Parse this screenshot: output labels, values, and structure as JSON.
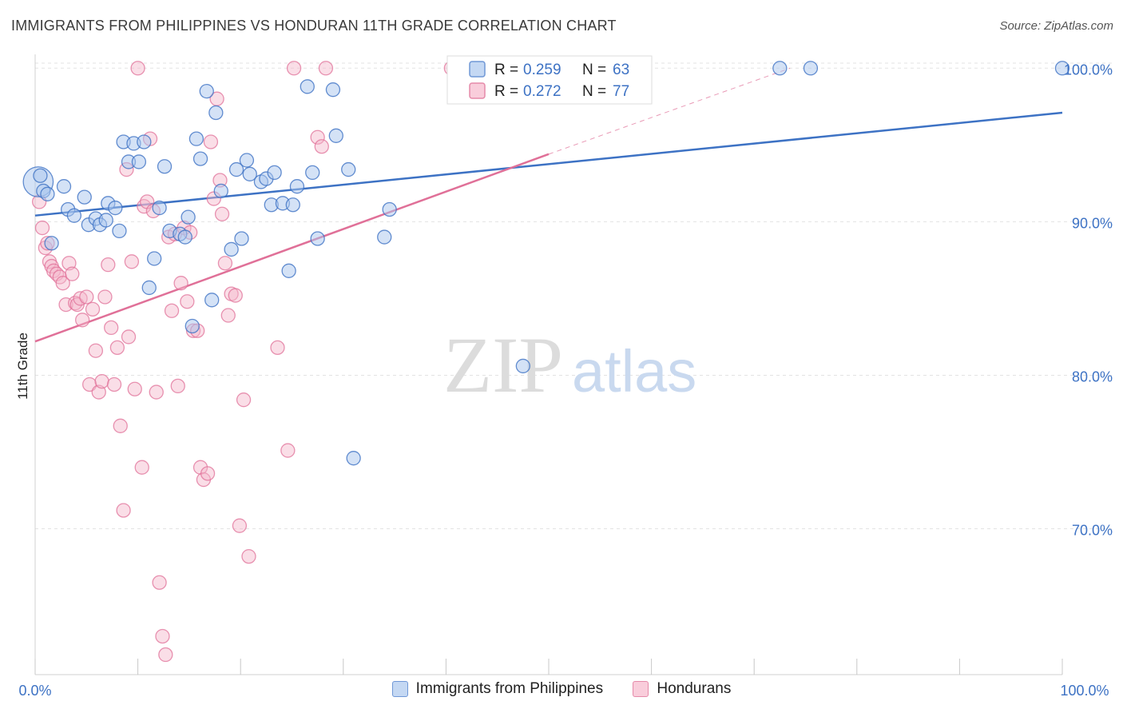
{
  "title": "IMMIGRANTS FROM PHILIPPINES VS HONDURAN 11TH GRADE CORRELATION CHART",
  "source": "Source: ZipAtlas.com",
  "watermark": {
    "zip": "ZIP",
    "atlas": "atlas"
  },
  "colors": {
    "blue": "#3d72c4",
    "blue_fill": "#a9c5ee",
    "pink": "#e07098",
    "pink_fill": "#f5b6ca",
    "axis_text": "#3d72c4"
  },
  "stats_box": [
    {
      "series": "Immigrants from Philippines",
      "r_label": "R =",
      "r_value": "0.259",
      "n_label": "N =",
      "n_value": "63"
    },
    {
      "series": "Hondurans",
      "r_label": "R =",
      "r_value": "0.272",
      "n_label": "N =",
      "n_value": "77"
    }
  ],
  "legend": [
    {
      "label": "Immigrants from Philippines",
      "color": "blue"
    },
    {
      "label": "Hondurans",
      "color": "pink"
    }
  ],
  "chart_data": {
    "type": "scatter",
    "title": "IMMIGRANTS FROM PHILIPPINES VS HONDURAN 11TH GRADE CORRELATION CHART",
    "xlabel": "",
    "ylabel": "11th Grade",
    "xlim": [
      0,
      100
    ],
    "ylim": [
      60.5,
      100.9
    ],
    "x_tick_labels": [
      "0.0%",
      "100.0%"
    ],
    "y_ticks": [
      70,
      80,
      90,
      100
    ],
    "y_tick_labels": [
      "70.0%",
      "80.0%",
      "90.0%",
      "100.0%"
    ],
    "grid": true,
    "legend_position": "bottom",
    "series": [
      {
        "name": "Immigrants from Philippines",
        "color": "blue",
        "trend": {
          "x": [
            0,
            100
          ],
          "y": [
            90.4,
            97.1
          ]
        },
        "points": [
          [
            0.3,
            92.6
          ],
          [
            0.8,
            92.0
          ],
          [
            1.2,
            91.8
          ],
          [
            1.6,
            88.6
          ],
          [
            2.8,
            92.3
          ],
          [
            3.2,
            90.8
          ],
          [
            3.8,
            90.4
          ],
          [
            4.8,
            91.6
          ],
          [
            5.2,
            89.8
          ],
          [
            5.9,
            90.2
          ],
          [
            6.3,
            89.8
          ],
          [
            6.9,
            90.1
          ],
          [
            7.1,
            91.2
          ],
          [
            7.8,
            90.9
          ],
          [
            8.2,
            89.4
          ],
          [
            8.6,
            95.2
          ],
          [
            9.1,
            93.9
          ],
          [
            9.6,
            95.1
          ],
          [
            10.1,
            93.9
          ],
          [
            10.6,
            95.2
          ],
          [
            11.1,
            85.7
          ],
          [
            11.6,
            87.6
          ],
          [
            12.1,
            90.9
          ],
          [
            12.6,
            93.6
          ],
          [
            13.1,
            89.4
          ],
          [
            14.1,
            89.2
          ],
          [
            14.6,
            89.0
          ],
          [
            14.9,
            90.3
          ],
          [
            15.3,
            83.2
          ],
          [
            15.7,
            95.4
          ],
          [
            16.1,
            94.1
          ],
          [
            16.7,
            98.5
          ],
          [
            17.2,
            84.9
          ],
          [
            17.6,
            97.1
          ],
          [
            18.1,
            92.0
          ],
          [
            19.1,
            88.2
          ],
          [
            19.6,
            93.4
          ],
          [
            20.1,
            88.9
          ],
          [
            20.6,
            94.0
          ],
          [
            20.9,
            93.1
          ],
          [
            22.0,
            92.6
          ],
          [
            22.5,
            92.8
          ],
          [
            23.0,
            91.1
          ],
          [
            23.3,
            93.2
          ],
          [
            24.1,
            91.2
          ],
          [
            24.7,
            86.8
          ],
          [
            25.1,
            91.1
          ],
          [
            25.5,
            92.3
          ],
          [
            26.5,
            98.8
          ],
          [
            27.0,
            93.2
          ],
          [
            27.5,
            88.9
          ],
          [
            29.0,
            98.6
          ],
          [
            29.3,
            95.6
          ],
          [
            30.5,
            93.4
          ],
          [
            31.0,
            74.6
          ],
          [
            34.0,
            89.0
          ],
          [
            34.5,
            90.8
          ],
          [
            47.5,
            80.6
          ],
          [
            72.5,
            100.0
          ],
          [
            75.5,
            100.0
          ],
          [
            100.0,
            100.0
          ],
          [
            59.0,
            100.0
          ],
          [
            0.5,
            93.0
          ]
        ],
        "sizes": {
          "0": 2.2
        }
      },
      {
        "name": "Hondurans",
        "color": "pink",
        "trend": {
          "x": [
            0,
            50
          ],
          "y": [
            82.2,
            94.4
          ]
        },
        "trend_dashed_to": {
          "x": 73.5,
          "y": 100.0
        },
        "points": [
          [
            0.4,
            91.3
          ],
          [
            0.7,
            89.6
          ],
          [
            1.0,
            88.3
          ],
          [
            1.2,
            88.6
          ],
          [
            1.4,
            87.4
          ],
          [
            1.6,
            87.1
          ],
          [
            1.8,
            86.8
          ],
          [
            2.1,
            86.6
          ],
          [
            2.4,
            86.4
          ],
          [
            2.7,
            86.0
          ],
          [
            3.0,
            84.6
          ],
          [
            3.3,
            87.3
          ],
          [
            3.6,
            86.6
          ],
          [
            3.9,
            84.7
          ],
          [
            4.1,
            84.6
          ],
          [
            4.4,
            85.0
          ],
          [
            4.6,
            83.6
          ],
          [
            5.0,
            85.1
          ],
          [
            5.3,
            79.4
          ],
          [
            5.6,
            84.3
          ],
          [
            5.9,
            81.6
          ],
          [
            6.2,
            78.9
          ],
          [
            6.5,
            79.6
          ],
          [
            6.8,
            85.1
          ],
          [
            7.1,
            87.2
          ],
          [
            7.4,
            83.1
          ],
          [
            7.7,
            79.4
          ],
          [
            8.0,
            81.8
          ],
          [
            8.3,
            76.7
          ],
          [
            8.6,
            71.2
          ],
          [
            8.9,
            93.4
          ],
          [
            9.1,
            82.5
          ],
          [
            9.4,
            87.4
          ],
          [
            9.7,
            79.1
          ],
          [
            10.0,
            100.0
          ],
          [
            10.4,
            74.0
          ],
          [
            10.6,
            91.0
          ],
          [
            10.9,
            91.3
          ],
          [
            11.2,
            95.4
          ],
          [
            11.5,
            90.7
          ],
          [
            11.8,
            78.9
          ],
          [
            12.1,
            66.5
          ],
          [
            12.4,
            63.0
          ],
          [
            12.7,
            61.8
          ],
          [
            13.0,
            89.0
          ],
          [
            13.3,
            84.2
          ],
          [
            13.6,
            89.2
          ],
          [
            13.9,
            79.3
          ],
          [
            14.2,
            86.0
          ],
          [
            14.5,
            89.6
          ],
          [
            14.8,
            84.8
          ],
          [
            15.1,
            89.3
          ],
          [
            15.4,
            82.9
          ],
          [
            15.8,
            82.9
          ],
          [
            16.1,
            74.0
          ],
          [
            16.4,
            73.2
          ],
          [
            16.8,
            73.6
          ],
          [
            17.1,
            95.2
          ],
          [
            17.4,
            91.5
          ],
          [
            17.7,
            98.0
          ],
          [
            18.0,
            92.7
          ],
          [
            18.2,
            90.5
          ],
          [
            18.5,
            87.3
          ],
          [
            18.8,
            83.9
          ],
          [
            19.1,
            85.3
          ],
          [
            19.5,
            85.2
          ],
          [
            19.9,
            70.2
          ],
          [
            20.3,
            78.4
          ],
          [
            20.8,
            68.2
          ],
          [
            23.6,
            81.8
          ],
          [
            24.6,
            75.1
          ],
          [
            25.2,
            100.0
          ],
          [
            27.5,
            95.5
          ],
          [
            27.9,
            94.9
          ],
          [
            28.3,
            100.0
          ],
          [
            40.5,
            100.0
          ],
          [
            41.5,
            100.0
          ]
        ]
      }
    ]
  }
}
